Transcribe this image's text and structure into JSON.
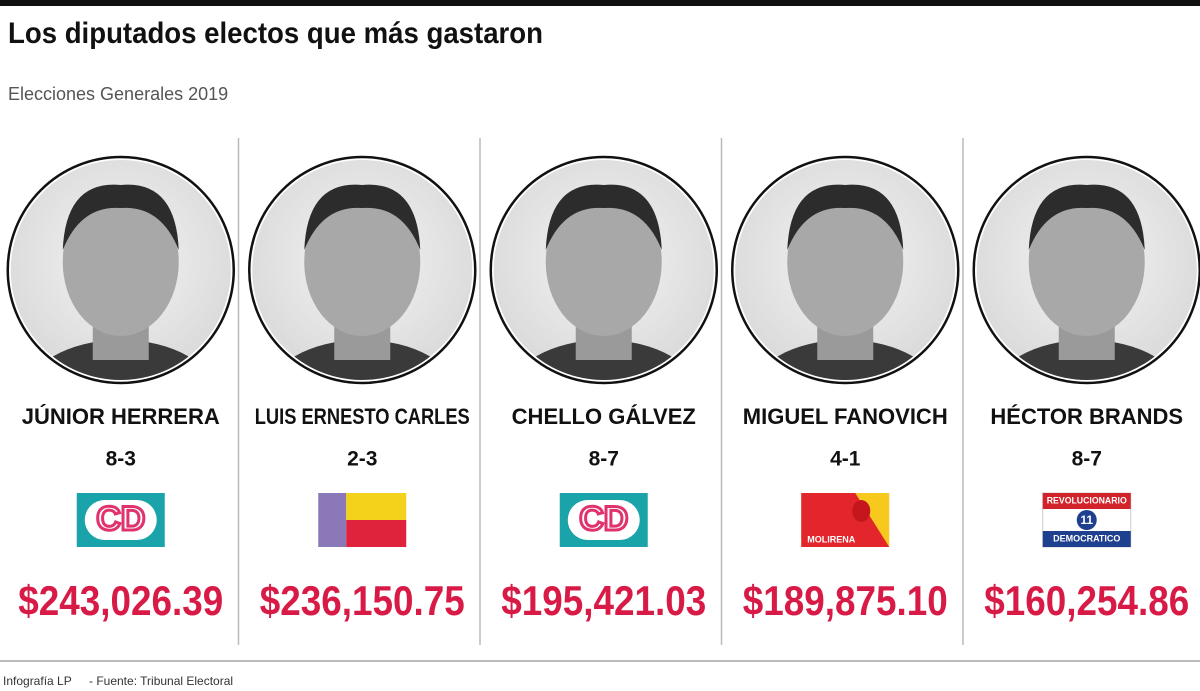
{
  "header": {
    "title": "Los diputados electos que más gastaron",
    "subtitle": "Elecciones Generales 2019"
  },
  "candidates": [
    {
      "name": "JÚNIOR HERRERA",
      "district": "8-3",
      "logo": {
        "type": "cd",
        "texts": [
          "CD"
        ]
      },
      "amount": "$243,026.39"
    },
    {
      "name": "LUIS ERNESTO CARLES",
      "district": "2-3",
      "logo": {
        "type": "stripes",
        "texts": []
      },
      "amount": "$236,150.75"
    },
    {
      "name": "CHELLO GÁLVEZ",
      "district": "8-7",
      "logo": {
        "type": "cd",
        "texts": [
          "CD"
        ]
      },
      "amount": "$195,421.03"
    },
    {
      "name": "MIGUEL FANOVICH",
      "district": "4-1",
      "logo": {
        "type": "molirena",
        "texts": [
          "MOLIRENA"
        ]
      },
      "amount": "$189,875.10"
    },
    {
      "name": "HÉCTOR BRANDS",
      "district": "8-7",
      "logo": {
        "type": "prd",
        "texts": [
          "REVOLUCIONARIO",
          "11",
          "DEMOCRATICO"
        ]
      },
      "amount": "$160,254.86"
    }
  ],
  "footer": {
    "credit": "Infografía LP",
    "source": "- Fuente: Tribunal Electoral"
  }
}
